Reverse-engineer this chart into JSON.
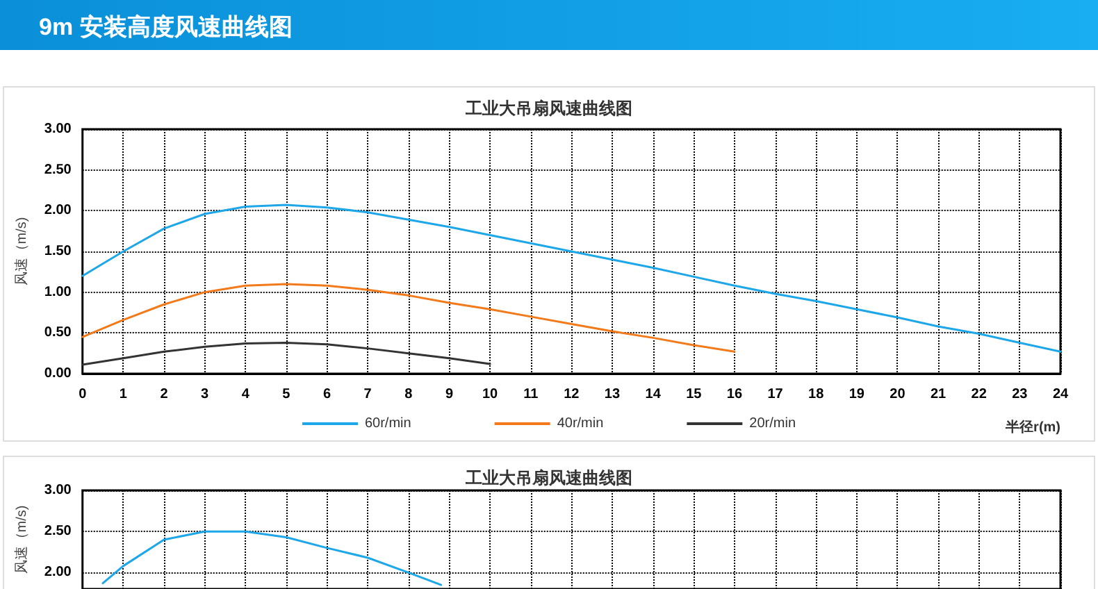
{
  "chart_data": [
    {
      "type": "line",
      "title": "工业大吊扇风速曲线图",
      "annotations": [
        "9m 安装高度风速曲线图"
      ],
      "xlabel": "半径r(m)",
      "ylabel": "风速（m/s)",
      "x": [
        0,
        1,
        2,
        3,
        4,
        5,
        6,
        7,
        8,
        9,
        10,
        11,
        12,
        13,
        14,
        15,
        16,
        17,
        18,
        19,
        20,
        21,
        22,
        23,
        24
      ],
      "series": [
        {
          "name": "60r/min",
          "color": "#1ea7e8",
          "values": [
            1.2,
            1.5,
            1.78,
            1.96,
            2.05,
            2.07,
            2.04,
            1.98,
            1.89,
            1.8,
            1.7,
            1.6,
            1.5,
            1.4,
            1.3,
            1.19,
            1.08,
            0.98,
            0.89,
            0.79,
            0.69,
            0.58,
            0.49,
            0.38,
            0.27
          ]
        },
        {
          "name": "40r/min",
          "color": "#f27a1a",
          "values": [
            0.45,
            0.66,
            0.85,
            1.0,
            1.08,
            1.1,
            1.08,
            1.03,
            0.96,
            0.87,
            0.79,
            0.7,
            0.61,
            0.52,
            0.44,
            0.35,
            0.27,
            null,
            null,
            null,
            null,
            null,
            null,
            null,
            null
          ]
        },
        {
          "name": "20r/min",
          "color": "#333333",
          "values": [
            0.11,
            0.19,
            0.27,
            0.33,
            0.37,
            0.38,
            0.36,
            0.31,
            0.25,
            0.19,
            0.12,
            null,
            null,
            null,
            null,
            null,
            null,
            null,
            null,
            null,
            null,
            null,
            null,
            null,
            null
          ]
        }
      ],
      "xlim": [
        0,
        24
      ],
      "xticks": [
        0,
        1,
        2,
        3,
        4,
        5,
        6,
        7,
        8,
        9,
        10,
        11,
        12,
        13,
        14,
        15,
        16,
        17,
        18,
        19,
        20,
        21,
        22,
        23,
        24
      ],
      "ylim": [
        0,
        3
      ],
      "yticks": [
        {
          "value": 0,
          "label": "0.00"
        },
        {
          "value": 0.5,
          "label": "0.50"
        },
        {
          "value": 1,
          "label": "1.00"
        },
        {
          "value": 1.5,
          "label": "1.50"
        },
        {
          "value": 2,
          "label": "2.00"
        },
        {
          "value": 2.5,
          "label": "2.50"
        },
        {
          "value": 3,
          "label": "3.00"
        }
      ],
      "grid": true,
      "legend": "bottom",
      "marker": "none",
      "line_style": "solid"
    },
    {
      "type": "line",
      "title": "工业大吊扇风速曲线图",
      "ylabel": "风速（m/s)",
      "x": [
        0.5,
        1,
        2,
        3,
        4,
        5,
        6,
        7,
        8,
        8.8
      ],
      "series": [
        {
          "color": "#1ea7e8",
          "values": [
            1.87,
            2.08,
            2.4,
            2.5,
            2.5,
            2.43,
            2.3,
            2.18,
            2.0,
            1.85
          ]
        }
      ],
      "xlim": [
        0,
        24
      ],
      "xticks": [
        0,
        1,
        2,
        3,
        4,
        5,
        6,
        7,
        8,
        9,
        10,
        11,
        12,
        13,
        14,
        15,
        16,
        17,
        18,
        19,
        20,
        21,
        22,
        23,
        24
      ],
      "ylim": [
        1.8,
        3
      ],
      "yticks": [
        {
          "value": 2,
          "label": "2.00"
        },
        {
          "value": 2.5,
          "label": "2.50"
        },
        {
          "value": 3,
          "label": "3.00"
        }
      ],
      "grid": true,
      "tick_labels": "y",
      "marker": "none",
      "line_style": "solid"
    }
  ]
}
